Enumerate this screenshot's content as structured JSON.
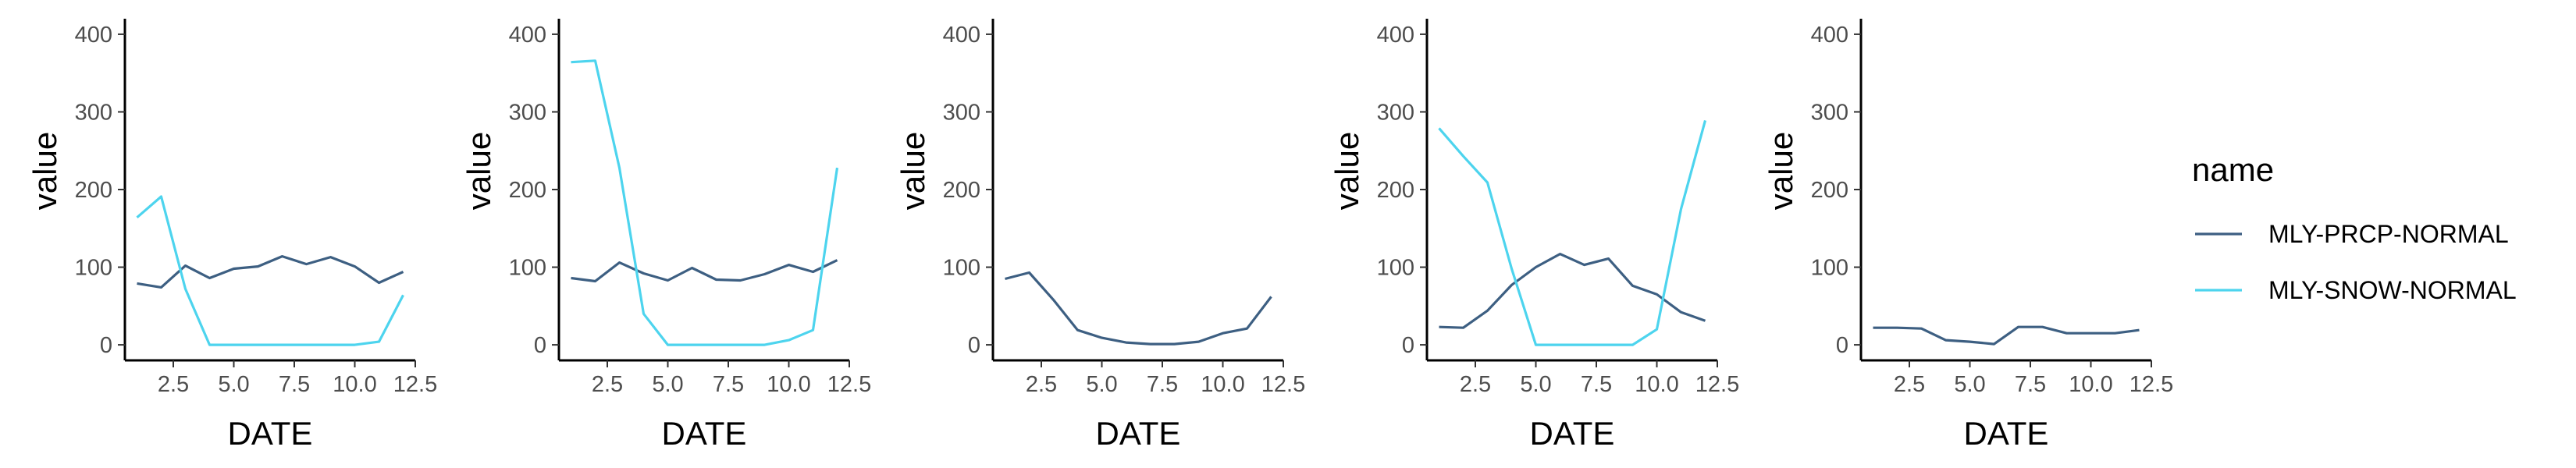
{
  "legend": {
    "title": "name",
    "entries": [
      {
        "name": "MLY-PRCP-NORMAL",
        "color": "#3d5f82"
      },
      {
        "name": "MLY-SNOW-NORMAL",
        "color": "#4dd4ee"
      }
    ]
  },
  "chart_data": [
    {
      "type": "line",
      "xlabel": "DATE",
      "ylabel": "value",
      "xlim": [
        0.5,
        12.5
      ],
      "ylim": [
        -20,
        420
      ],
      "xticks": [
        "2.5",
        "5.0",
        "7.5",
        "10.0",
        "12.5"
      ],
      "yticks": [
        "0",
        "100",
        "200",
        "300",
        "400"
      ],
      "x": [
        1,
        2,
        3,
        4,
        5,
        6,
        7,
        8,
        9,
        10,
        11,
        12
      ],
      "series": [
        {
          "name": "MLY-PRCP-NORMAL",
          "values": [
            79,
            74,
            102,
            86,
            98,
            101,
            114,
            104,
            113,
            101,
            80,
            94
          ]
        },
        {
          "name": "MLY-SNOW-NORMAL",
          "values": [
            164,
            191,
            72,
            0,
            0,
            0,
            0,
            0,
            0,
            0,
            4,
            64
          ]
        }
      ]
    },
    {
      "type": "line",
      "xlabel": "DATE",
      "ylabel": "value",
      "xlim": [
        0.5,
        12.5
      ],
      "ylim": [
        -20,
        420
      ],
      "xticks": [
        "2.5",
        "5.0",
        "7.5",
        "10.0",
        "12.5"
      ],
      "yticks": [
        "0",
        "100",
        "200",
        "300",
        "400"
      ],
      "x": [
        1,
        2,
        3,
        4,
        5,
        6,
        7,
        8,
        9,
        10,
        11,
        12
      ],
      "series": [
        {
          "name": "MLY-PRCP-NORMAL",
          "values": [
            86,
            82,
            106,
            92,
            83,
            99,
            84,
            83,
            91,
            103,
            94,
            109
          ]
        },
        {
          "name": "MLY-SNOW-NORMAL",
          "values": [
            364,
            366,
            228,
            40,
            0,
            0,
            0,
            0,
            0,
            6,
            19,
            228
          ]
        }
      ]
    },
    {
      "type": "line",
      "xlabel": "DATE",
      "ylabel": "value",
      "xlim": [
        0.5,
        12.5
      ],
      "ylim": [
        -20,
        420
      ],
      "xticks": [
        "2.5",
        "5.0",
        "7.5",
        "10.0",
        "12.5"
      ],
      "yticks": [
        "0",
        "100",
        "200",
        "300",
        "400"
      ],
      "x": [
        1,
        2,
        3,
        4,
        5,
        6,
        7,
        8,
        9,
        10,
        11,
        12
      ],
      "series": [
        {
          "name": "MLY-PRCP-NORMAL",
          "values": [
            85,
            93,
            58,
            19,
            9,
            3,
            1,
            1,
            4,
            15,
            21,
            62
          ]
        }
      ]
    },
    {
      "type": "line",
      "xlabel": "DATE",
      "ylabel": "value",
      "xlim": [
        0.5,
        12.5
      ],
      "ylim": [
        -20,
        420
      ],
      "xticks": [
        "2.5",
        "5.0",
        "7.5",
        "10.0",
        "12.5"
      ],
      "yticks": [
        "0",
        "100",
        "200",
        "300",
        "400"
      ],
      "x": [
        1,
        2,
        3,
        4,
        5,
        6,
        7,
        8,
        9,
        10,
        11,
        12
      ],
      "series": [
        {
          "name": "MLY-PRCP-NORMAL",
          "values": [
            23,
            22,
            44,
            77,
            100,
            117,
            103,
            111,
            76,
            65,
            42,
            31
          ]
        },
        {
          "name": "MLY-SNOW-NORMAL",
          "values": [
            279,
            243,
            209,
            98,
            0,
            0,
            0,
            0,
            0,
            20,
            175,
            289
          ]
        }
      ]
    },
    {
      "type": "line",
      "xlabel": "DATE",
      "ylabel": "value",
      "xlim": [
        0.5,
        12.5
      ],
      "ylim": [
        -20,
        420
      ],
      "xticks": [
        "2.5",
        "5.0",
        "7.5",
        "10.0",
        "12.5"
      ],
      "yticks": [
        "0",
        "100",
        "200",
        "300",
        "400"
      ],
      "x": [
        1,
        2,
        3,
        4,
        5,
        6,
        7,
        8,
        9,
        10,
        11,
        12
      ],
      "series": [
        {
          "name": "MLY-PRCP-NORMAL",
          "values": [
            22,
            22,
            21,
            6,
            4,
            1,
            23,
            23,
            15,
            15,
            15,
            19
          ]
        }
      ]
    }
  ]
}
